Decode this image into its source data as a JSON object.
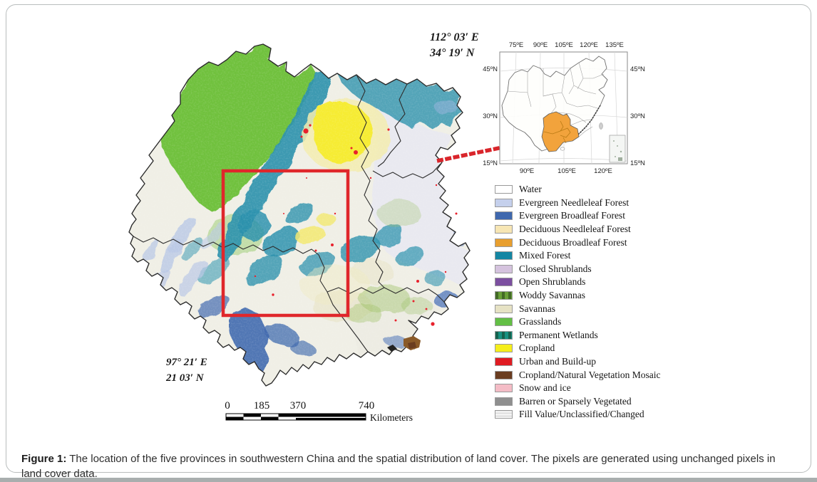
{
  "figure": {
    "caption_label": "Figure 1:",
    "caption_text": " The location of the five provinces in southwestern China and the spatial distribution of land cover. The pixels are generated using unchanged pixels in land cover data."
  },
  "map": {
    "corner_top_line1": "112° 03′ E",
    "corner_top_line2": "34° 19′ N",
    "corner_bottom_line1": "97° 21′ E",
    "corner_bottom_line2": "21 03′ N",
    "scale_bar": {
      "ticks": [
        "0",
        "185",
        "370",
        "740"
      ],
      "unit": "Kilometers"
    },
    "accent_red": "#e0272b"
  },
  "inset": {
    "top_ticks": [
      "75ºE",
      "90ºE",
      "105ºE",
      "120ºE",
      "135ºE"
    ],
    "bottom_ticks": [
      "90ºE",
      "105ºE",
      "120ºE"
    ],
    "left_ticks": [
      "45ºN",
      "30ºN",
      "15ºN"
    ],
    "right_ticks": [
      "45ºN",
      "30ºN",
      "15ºN"
    ],
    "highlight_color": "#f2a33c"
  },
  "legend": {
    "items": [
      {
        "label": "Water",
        "color": "#ffffff"
      },
      {
        "label": "Evergreen Needleleaf Forest",
        "color": "#c5d0ec"
      },
      {
        "label": "Evergreen Broadleaf Forest",
        "color": "#3f68ae"
      },
      {
        "label": "Deciduous Needleleaf Forest",
        "color": "#f7e6b4"
      },
      {
        "label": "Deciduous Broadleaf Forest",
        "color": "#e89f2f"
      },
      {
        "label": "Mixed Forest",
        "color": "#1486a3"
      },
      {
        "label": "Closed Shrublands",
        "color": "#d5c3de"
      },
      {
        "label": "Open Shrublands",
        "color": "#7c4fa0"
      },
      {
        "label": "Woddy Savannas",
        "color": "#69a038",
        "pattern": "dashes"
      },
      {
        "label": "Savannas",
        "color": "#e6e2c4"
      },
      {
        "label": "Grasslands",
        "color": "#63bf45"
      },
      {
        "label": "Permanent Wetlands",
        "color": "#179181",
        "pattern": "dashes"
      },
      {
        "label": "Cropland",
        "color": "#f5ee1b"
      },
      {
        "label": "Urban and Build-up",
        "color": "#e01b22"
      },
      {
        "label": "Cropland/Natural Vegetation Mosaic",
        "color": "#6a3d20"
      },
      {
        "label": "Snow and ice",
        "color": "#f4bcc6"
      },
      {
        "label": "Barren or Sparsely Vegetated",
        "color": "#8f8f8f"
      },
      {
        "label": "Fill Value/Unclassified/Changed",
        "color": "#e4e4e4",
        "pattern": "lines"
      }
    ]
  }
}
